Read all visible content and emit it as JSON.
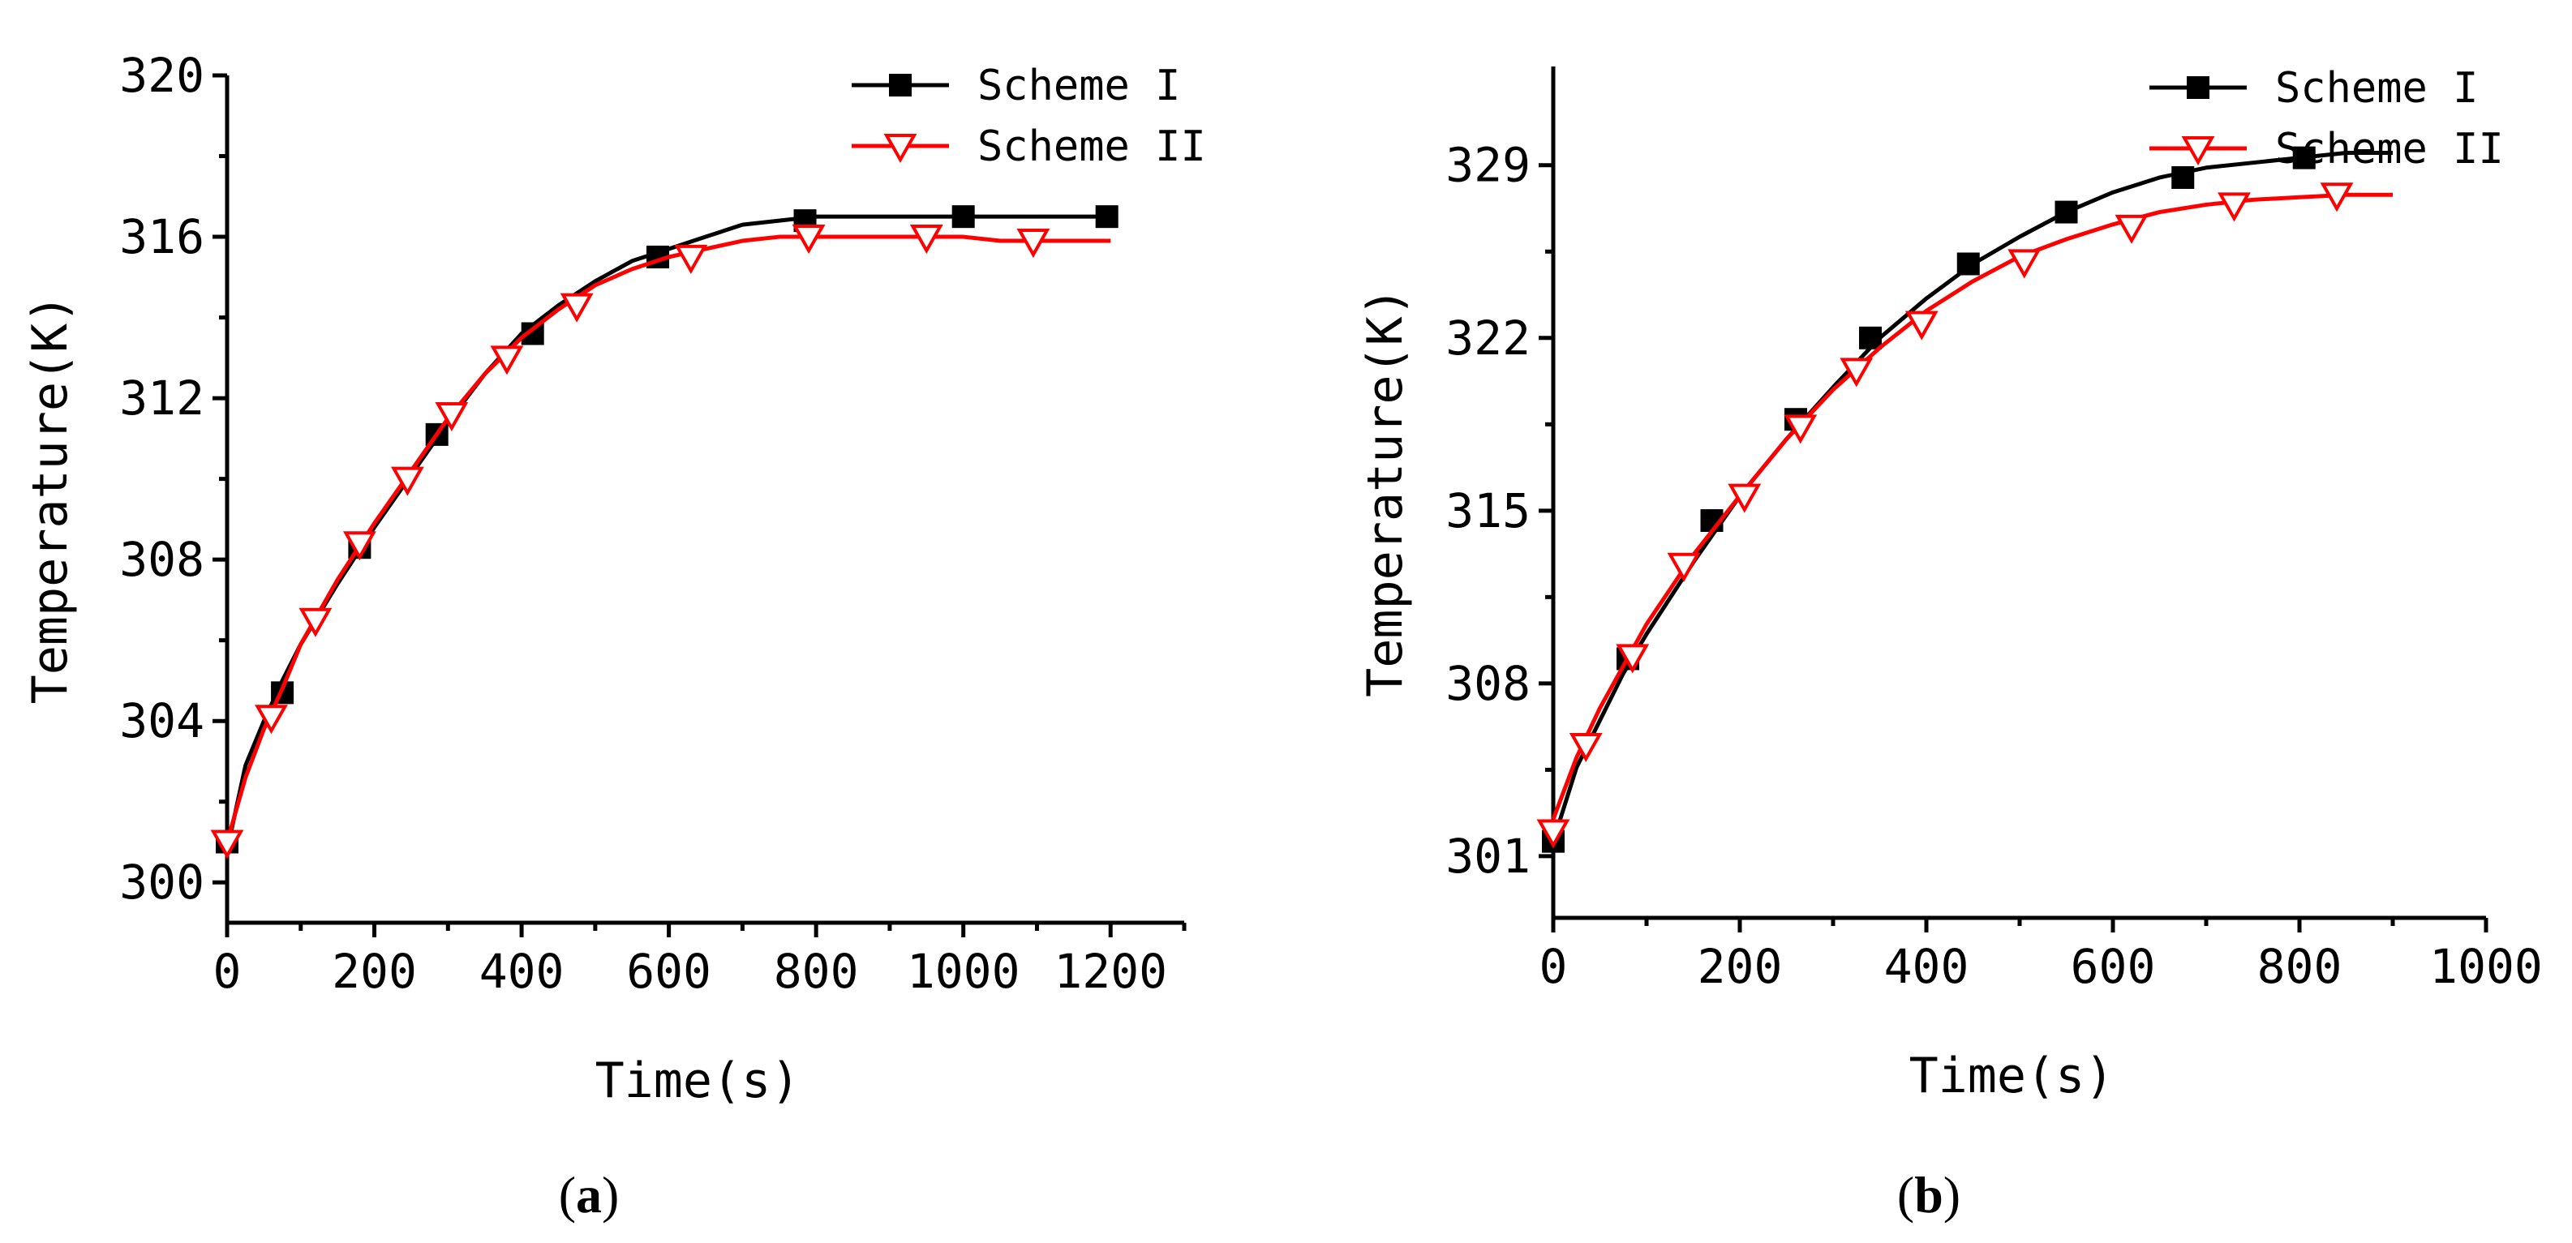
{
  "chart_data": [
    {
      "type": "line",
      "panel_label": "a",
      "xlabel": "Time(s)",
      "ylabel": "Temperature(K)",
      "xlim": [
        0,
        1300
      ],
      "ylim": [
        299,
        320
      ],
      "xticks": [
        0,
        200,
        400,
        600,
        800,
        1000,
        1200
      ],
      "yticks": [
        300,
        304,
        308,
        312,
        316,
        320
      ],
      "legend_position": "top-right",
      "series": [
        {
          "name": "Scheme I",
          "color": "#000000",
          "marker": "filled-square",
          "x": [
            0,
            25,
            50,
            75,
            100,
            150,
            200,
            250,
            300,
            350,
            400,
            450,
            500,
            550,
            600,
            650,
            700,
            750,
            800,
            850,
            900,
            950,
            1000,
            1050,
            1100,
            1150,
            1200
          ],
          "y": [
            300.8,
            302.9,
            304.0,
            305.0,
            305.9,
            307.4,
            308.8,
            310.1,
            311.4,
            312.6,
            313.6,
            314.3,
            314.9,
            315.4,
            315.7,
            316.0,
            316.3,
            316.4,
            316.5,
            316.5,
            316.5,
            316.5,
            316.5,
            316.5,
            316.5,
            316.5,
            316.5
          ],
          "marker_x": [
            0,
            75,
            180,
            285,
            415,
            585,
            785,
            1000,
            1195
          ],
          "marker_y": [
            301.0,
            304.7,
            308.3,
            311.1,
            313.6,
            315.5,
            316.4,
            316.5,
            316.5
          ]
        },
        {
          "name": "Scheme II",
          "color": "#ff0000",
          "marker": "open-triangle-down",
          "x": [
            0,
            25,
            50,
            75,
            100,
            150,
            200,
            250,
            300,
            350,
            400,
            450,
            500,
            550,
            600,
            650,
            700,
            750,
            800,
            850,
            900,
            950,
            1000,
            1050,
            1100,
            1150,
            1200
          ],
          "y": [
            301.0,
            302.6,
            303.8,
            304.8,
            305.9,
            307.5,
            308.9,
            310.2,
            311.5,
            312.6,
            313.5,
            314.2,
            314.8,
            315.2,
            315.5,
            315.7,
            315.9,
            316.0,
            316.0,
            316.0,
            316.0,
            316.0,
            316.0,
            315.9,
            315.9,
            315.9,
            315.9
          ],
          "marker_x": [
            0,
            60,
            120,
            180,
            245,
            305,
            380,
            475,
            630,
            790,
            950,
            1095
          ],
          "marker_y": [
            301.0,
            304.1,
            306.5,
            308.4,
            310.0,
            311.6,
            313.0,
            314.3,
            315.5,
            316.0,
            316.0,
            315.9
          ]
        }
      ]
    },
    {
      "type": "line",
      "panel_label": "b",
      "xlabel": "Time(s)",
      "ylabel": "Temperature(K)",
      "xlim": [
        0,
        1000
      ],
      "ylim": [
        298.5,
        333
      ],
      "xticks": [
        0,
        200,
        400,
        600,
        800,
        1000
      ],
      "yticks": [
        301,
        308,
        315,
        322,
        329
      ],
      "legend_position": "top-right",
      "series": [
        {
          "name": "Scheme I",
          "color": "#000000",
          "marker": "filled-square",
          "x": [
            0,
            25,
            50,
            75,
            100,
            150,
            200,
            250,
            300,
            350,
            400,
            450,
            500,
            550,
            600,
            650,
            700,
            750,
            800,
            850,
            900
          ],
          "y": [
            301.6,
            304.6,
            306.5,
            308.4,
            310.0,
            312.9,
            315.6,
            317.9,
            320.0,
            322.0,
            323.6,
            325.0,
            326.1,
            327.1,
            327.9,
            328.5,
            328.9,
            329.1,
            329.3,
            329.5,
            329.5
          ],
          "marker_x": [
            0,
            80,
            170,
            260,
            340,
            445,
            550,
            675,
            805
          ],
          "marker_y": [
            301.6,
            309.0,
            314.6,
            318.7,
            322.0,
            325.0,
            327.1,
            328.5,
            329.3
          ]
        },
        {
          "name": "Scheme II",
          "color": "#ff0000",
          "marker": "open-triangle-down",
          "x": [
            0,
            25,
            50,
            75,
            100,
            150,
            200,
            250,
            300,
            350,
            400,
            450,
            500,
            550,
            600,
            650,
            700,
            750,
            800,
            850,
            900
          ],
          "y": [
            302.5,
            305.0,
            307.0,
            308.7,
            310.4,
            313.2,
            315.6,
            317.9,
            319.9,
            321.6,
            323.1,
            324.3,
            325.3,
            326.0,
            326.6,
            327.1,
            327.4,
            327.6,
            327.7,
            327.8,
            327.8
          ],
          "marker_x": [
            0,
            35,
            85,
            140,
            205,
            265,
            325,
            395,
            505,
            620,
            730,
            840
          ],
          "marker_y": [
            302.0,
            305.5,
            309.1,
            312.8,
            315.6,
            318.4,
            320.7,
            322.6,
            325.1,
            326.5,
            327.4,
            327.8
          ]
        }
      ]
    }
  ]
}
